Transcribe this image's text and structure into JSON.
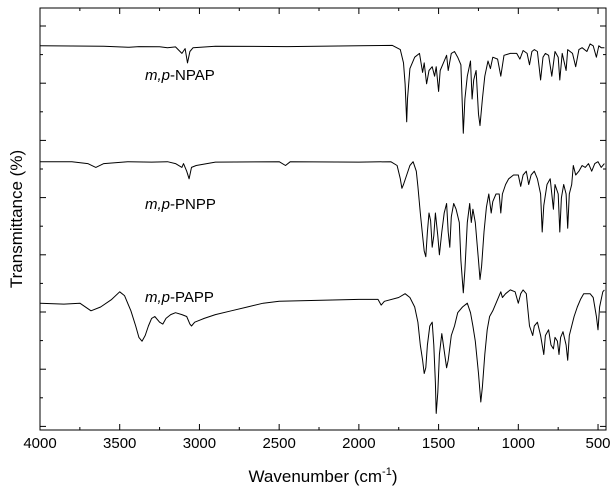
{
  "chart_data": {
    "type": "line",
    "xlabel": "Wavenumber (cm",
    "xlabel_sup": "-1",
    "xlabel_close": ")",
    "ylabel": "Transmittance (%)",
    "xlim": [
      4000,
      450
    ],
    "x_reversed": true,
    "xticks": [
      4000,
      3500,
      3000,
      2500,
      2000,
      1500,
      1000,
      500
    ],
    "y_tick_labels": false,
    "grid": false,
    "series": [
      {
        "name_prefix": "m,p",
        "name_suffix": "-NPAP",
        "points": [
          [
            4000,
            0.02
          ],
          [
            3600,
            0.022
          ],
          [
            3440,
            0.028
          ],
          [
            3380,
            0.024
          ],
          [
            3250,
            0.025
          ],
          [
            3200,
            0.03
          ],
          [
            3150,
            0.026
          ],
          [
            3110,
            0.06
          ],
          [
            3090,
            0.035
          ],
          [
            3075,
            0.11
          ],
          [
            3060,
            0.05
          ],
          [
            3040,
            0.03
          ],
          [
            2900,
            0.022
          ],
          [
            2450,
            0.024
          ],
          [
            2000,
            0.02
          ],
          [
            1790,
            0.018
          ],
          [
            1740,
            0.04
          ],
          [
            1720,
            0.11
          ],
          [
            1710,
            0.22
          ],
          [
            1700,
            0.42
          ],
          [
            1695,
            0.3
          ],
          [
            1680,
            0.14
          ],
          [
            1650,
            0.08
          ],
          [
            1620,
            0.06
          ],
          [
            1600,
            0.16
          ],
          [
            1590,
            0.11
          ],
          [
            1575,
            0.22
          ],
          [
            1560,
            0.15
          ],
          [
            1540,
            0.13
          ],
          [
            1525,
            0.18
          ],
          [
            1515,
            0.13
          ],
          [
            1500,
            0.26
          ],
          [
            1490,
            0.15
          ],
          [
            1470,
            0.11
          ],
          [
            1450,
            0.07
          ],
          [
            1440,
            0.15
          ],
          [
            1420,
            0.06
          ],
          [
            1400,
            0.05
          ],
          [
            1380,
            0.08
          ],
          [
            1360,
            0.12
          ],
          [
            1345,
            0.48
          ],
          [
            1335,
            0.3
          ],
          [
            1320,
            0.18
          ],
          [
            1300,
            0.1
          ],
          [
            1290,
            0.3
          ],
          [
            1280,
            0.2
          ],
          [
            1265,
            0.15
          ],
          [
            1250,
            0.38
          ],
          [
            1240,
            0.44
          ],
          [
            1225,
            0.3
          ],
          [
            1210,
            0.18
          ],
          [
            1190,
            0.1
          ],
          [
            1175,
            0.14
          ],
          [
            1160,
            0.08
          ],
          [
            1130,
            0.09
          ],
          [
            1110,
            0.18
          ],
          [
            1090,
            0.07
          ],
          [
            1050,
            0.06
          ],
          [
            1010,
            0.06
          ],
          [
            990,
            0.09
          ],
          [
            970,
            0.045
          ],
          [
            945,
            0.06
          ],
          [
            930,
            0.12
          ],
          [
            915,
            0.05
          ],
          [
            900,
            0.04
          ],
          [
            880,
            0.05
          ],
          [
            860,
            0.2
          ],
          [
            845,
            0.08
          ],
          [
            830,
            0.06
          ],
          [
            810,
            0.07
          ],
          [
            790,
            0.18
          ],
          [
            770,
            0.05
          ],
          [
            750,
            0.08
          ],
          [
            740,
            0.2
          ],
          [
            725,
            0.06
          ],
          [
            700,
            0.15
          ],
          [
            690,
            0.04
          ],
          [
            660,
            0.06
          ],
          [
            640,
            0.13
          ],
          [
            620,
            0.04
          ],
          [
            600,
            0.03
          ],
          [
            570,
            0.05
          ],
          [
            550,
            0.01
          ],
          [
            530,
            0.02
          ],
          [
            510,
            0.08
          ],
          [
            495,
            0.02
          ],
          [
            480,
            0.03
          ],
          [
            460,
            0.03
          ]
        ]
      },
      {
        "name_prefix": "m,p",
        "name_suffix": "-PNPP",
        "points": [
          [
            4000,
            0.03
          ],
          [
            3800,
            0.03
          ],
          [
            3700,
            0.04
          ],
          [
            3650,
            0.06
          ],
          [
            3600,
            0.04
          ],
          [
            3450,
            0.03
          ],
          [
            3300,
            0.032
          ],
          [
            3200,
            0.03
          ],
          [
            3150,
            0.04
          ],
          [
            3110,
            0.06
          ],
          [
            3100,
            0.04
          ],
          [
            3080,
            0.08
          ],
          [
            3065,
            0.12
          ],
          [
            3050,
            0.06
          ],
          [
            3020,
            0.05
          ],
          [
            2900,
            0.032
          ],
          [
            2500,
            0.03
          ],
          [
            2460,
            0.05
          ],
          [
            2430,
            0.03
          ],
          [
            2000,
            0.032
          ],
          [
            1800,
            0.03
          ],
          [
            1760,
            0.05
          ],
          [
            1740,
            0.12
          ],
          [
            1730,
            0.17
          ],
          [
            1720,
            0.15
          ],
          [
            1700,
            0.1
          ],
          [
            1680,
            0.05
          ],
          [
            1660,
            0.03
          ],
          [
            1640,
            0.08
          ],
          [
            1630,
            0.16
          ],
          [
            1615,
            0.3
          ],
          [
            1600,
            0.42
          ],
          [
            1590,
            0.5
          ],
          [
            1580,
            0.53
          ],
          [
            1570,
            0.4
          ],
          [
            1560,
            0.3
          ],
          [
            1550,
            0.34
          ],
          [
            1540,
            0.48
          ],
          [
            1530,
            0.42
          ],
          [
            1520,
            0.3
          ],
          [
            1505,
            0.42
          ],
          [
            1495,
            0.52
          ],
          [
            1480,
            0.4
          ],
          [
            1465,
            0.3
          ],
          [
            1450,
            0.25
          ],
          [
            1440,
            0.4
          ],
          [
            1430,
            0.48
          ],
          [
            1420,
            0.32
          ],
          [
            1405,
            0.25
          ],
          [
            1390,
            0.28
          ],
          [
            1370,
            0.35
          ],
          [
            1360,
            0.55
          ],
          [
            1345,
            0.72
          ],
          [
            1335,
            0.6
          ],
          [
            1320,
            0.35
          ],
          [
            1305,
            0.25
          ],
          [
            1295,
            0.35
          ],
          [
            1285,
            0.28
          ],
          [
            1270,
            0.35
          ],
          [
            1250,
            0.55
          ],
          [
            1240,
            0.65
          ],
          [
            1230,
            0.58
          ],
          [
            1215,
            0.4
          ],
          [
            1200,
            0.27
          ],
          [
            1185,
            0.2
          ],
          [
            1170,
            0.3
          ],
          [
            1160,
            0.24
          ],
          [
            1140,
            0.2
          ],
          [
            1120,
            0.2
          ],
          [
            1110,
            0.3
          ],
          [
            1100,
            0.2
          ],
          [
            1080,
            0.15
          ],
          [
            1060,
            0.12
          ],
          [
            1030,
            0.1
          ],
          [
            1000,
            0.1
          ],
          [
            985,
            0.16
          ],
          [
            970,
            0.1
          ],
          [
            950,
            0.08
          ],
          [
            935,
            0.15
          ],
          [
            920,
            0.1
          ],
          [
            900,
            0.08
          ],
          [
            880,
            0.12
          ],
          [
            860,
            0.2
          ],
          [
            850,
            0.4
          ],
          [
            840,
            0.26
          ],
          [
            820,
            0.15
          ],
          [
            800,
            0.12
          ],
          [
            790,
            0.2
          ],
          [
            780,
            0.28
          ],
          [
            770,
            0.15
          ],
          [
            750,
            0.2
          ],
          [
            740,
            0.4
          ],
          [
            730,
            0.22
          ],
          [
            715,
            0.15
          ],
          [
            700,
            0.2
          ],
          [
            690,
            0.38
          ],
          [
            680,
            0.2
          ],
          [
            665,
            0.15
          ],
          [
            655,
            0.05
          ],
          [
            640,
            0.1
          ],
          [
            620,
            0.08
          ],
          [
            600,
            0.05
          ],
          [
            580,
            0.06
          ],
          [
            560,
            0.04
          ],
          [
            540,
            0.08
          ],
          [
            520,
            0.04
          ],
          [
            500,
            0.03
          ],
          [
            480,
            0.06
          ],
          [
            460,
            0.04
          ]
        ]
      },
      {
        "name_prefix": "m,p",
        "name_suffix": "-PAPP",
        "points": [
          [
            4000,
            0.08
          ],
          [
            3850,
            0.085
          ],
          [
            3750,
            0.08
          ],
          [
            3680,
            0.12
          ],
          [
            3620,
            0.1
          ],
          [
            3550,
            0.06
          ],
          [
            3500,
            0.02
          ],
          [
            3470,
            0.04
          ],
          [
            3430,
            0.12
          ],
          [
            3400,
            0.2
          ],
          [
            3380,
            0.26
          ],
          [
            3360,
            0.28
          ],
          [
            3340,
            0.25
          ],
          [
            3320,
            0.2
          ],
          [
            3300,
            0.16
          ],
          [
            3280,
            0.15
          ],
          [
            3250,
            0.18
          ],
          [
            3230,
            0.19
          ],
          [
            3210,
            0.16
          ],
          [
            3180,
            0.14
          ],
          [
            3150,
            0.13
          ],
          [
            3110,
            0.14
          ],
          [
            3080,
            0.15
          ],
          [
            3060,
            0.19
          ],
          [
            3050,
            0.2
          ],
          [
            3030,
            0.18
          ],
          [
            3000,
            0.17
          ],
          [
            2970,
            0.16
          ],
          [
            2900,
            0.14
          ],
          [
            2800,
            0.12
          ],
          [
            2700,
            0.1
          ],
          [
            2600,
            0.08
          ],
          [
            2500,
            0.07
          ],
          [
            2000,
            0.06
          ],
          [
            1880,
            0.06
          ],
          [
            1860,
            0.09
          ],
          [
            1840,
            0.07
          ],
          [
            1750,
            0.05
          ],
          [
            1710,
            0.03
          ],
          [
            1680,
            0.05
          ],
          [
            1650,
            0.1
          ],
          [
            1630,
            0.18
          ],
          [
            1615,
            0.3
          ],
          [
            1600,
            0.38
          ],
          [
            1590,
            0.45
          ],
          [
            1580,
            0.42
          ],
          [
            1570,
            0.3
          ],
          [
            1555,
            0.2
          ],
          [
            1540,
            0.18
          ],
          [
            1530,
            0.3
          ],
          [
            1520,
            0.5
          ],
          [
            1515,
            0.66
          ],
          [
            1505,
            0.55
          ],
          [
            1495,
            0.35
          ],
          [
            1480,
            0.24
          ],
          [
            1470,
            0.3
          ],
          [
            1450,
            0.42
          ],
          [
            1440,
            0.38
          ],
          [
            1420,
            0.25
          ],
          [
            1400,
            0.2
          ],
          [
            1380,
            0.13
          ],
          [
            1350,
            0.1
          ],
          [
            1320,
            0.08
          ],
          [
            1300,
            0.13
          ],
          [
            1285,
            0.2
          ],
          [
            1270,
            0.28
          ],
          [
            1250,
            0.45
          ],
          [
            1235,
            0.6
          ],
          [
            1225,
            0.52
          ],
          [
            1210,
            0.35
          ],
          [
            1195,
            0.22
          ],
          [
            1180,
            0.15
          ],
          [
            1160,
            0.12
          ],
          [
            1130,
            0.06
          ],
          [
            1110,
            0.02
          ],
          [
            1100,
            0.05
          ],
          [
            1080,
            0.03
          ],
          [
            1050,
            0.01
          ],
          [
            1020,
            0.02
          ],
          [
            1000,
            0.08
          ],
          [
            985,
            0.03
          ],
          [
            970,
            0.01
          ],
          [
            950,
            0.03
          ],
          [
            930,
            0.2
          ],
          [
            910,
            0.25
          ],
          [
            900,
            0.2
          ],
          [
            880,
            0.18
          ],
          [
            860,
            0.25
          ],
          [
            840,
            0.35
          ],
          [
            830,
            0.25
          ],
          [
            810,
            0.22
          ],
          [
            795,
            0.3
          ],
          [
            780,
            0.32
          ],
          [
            770,
            0.26
          ],
          [
            755,
            0.28
          ],
          [
            745,
            0.35
          ],
          [
            735,
            0.26
          ],
          [
            720,
            0.23
          ],
          [
            700,
            0.3
          ],
          [
            690,
            0.38
          ],
          [
            680,
            0.25
          ],
          [
            665,
            0.2
          ],
          [
            650,
            0.15
          ],
          [
            630,
            0.1
          ],
          [
            610,
            0.06
          ],
          [
            590,
            0.03
          ],
          [
            570,
            0.03
          ],
          [
            550,
            0.03
          ],
          [
            530,
            0.05
          ],
          [
            510,
            0.15
          ],
          [
            500,
            0.22
          ],
          [
            490,
            0.1
          ],
          [
            470,
            0.02
          ],
          [
            460,
            0.01
          ]
        ]
      }
    ]
  }
}
